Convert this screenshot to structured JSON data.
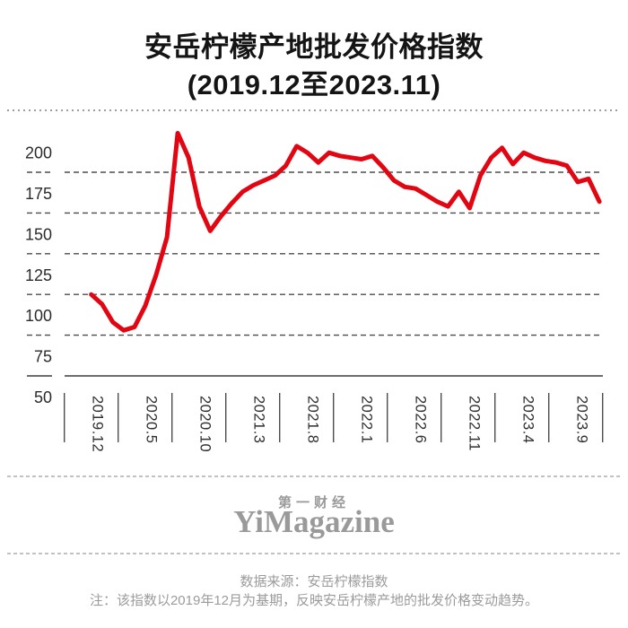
{
  "page": {
    "title": "安岳柠檬产地批发价格指数",
    "subtitle": "(2019.12至2023.11)"
  },
  "chart_data": {
    "type": "line",
    "title": "安岳柠檬产地批发价格指数",
    "subtitle": "(2019.12至2023.11)",
    "series_name": "安岳柠檬产地批发价格指数",
    "x": [
      "2019.12",
      "2020.1",
      "2020.2",
      "2020.3",
      "2020.4",
      "2020.5",
      "2020.6",
      "2020.7",
      "2020.8",
      "2020.9",
      "2020.10",
      "2020.11",
      "2020.12",
      "2021.1",
      "2021.2",
      "2021.3",
      "2021.4",
      "2021.5",
      "2021.6",
      "2021.7",
      "2021.8",
      "2021.9",
      "2021.10",
      "2021.11",
      "2021.12",
      "2022.1",
      "2022.2",
      "2022.3",
      "2022.4",
      "2022.5",
      "2022.6",
      "2022.7",
      "2022.8",
      "2022.9",
      "2022.10",
      "2022.11",
      "2022.12",
      "2023.1",
      "2023.2",
      "2023.3",
      "2023.4",
      "2023.5",
      "2023.6",
      "2023.7",
      "2023.8",
      "2023.9",
      "2023.10",
      "2023.11"
    ],
    "values": [
      100,
      94,
      83,
      78,
      80,
      93,
      112,
      135,
      199,
      184,
      154,
      139,
      148,
      156,
      163,
      167,
      170,
      173,
      179,
      191,
      187,
      181,
      187,
      185,
      184,
      183,
      185,
      178,
      170,
      166,
      165,
      161,
      157,
      154,
      163,
      153,
      173,
      184,
      190,
      180,
      187,
      184,
      182,
      181,
      179,
      169,
      171,
      157
    ],
    "x_tick_labels": [
      "2019.12",
      "2020.5",
      "2020.10",
      "2021.3",
      "2021.8",
      "2022.1",
      "2022.6",
      "2022.11",
      "2023.4",
      "2023.9"
    ],
    "y_ticks": [
      200,
      175,
      150,
      125,
      100,
      75,
      50
    ],
    "ylim": [
      50,
      215
    ],
    "xlabel": "",
    "ylabel": "",
    "legend": "none",
    "grid": "horizontal-dashed",
    "line_color": "#e20613"
  },
  "footer": {
    "brand_cn": "第一财经",
    "brand_en": "YiMagazine",
    "source": "数据来源：安岳柠檬指数",
    "note": "注：该指数以2019年12月为基期，反映安岳柠檬产地的批发价格变动趋势。"
  }
}
